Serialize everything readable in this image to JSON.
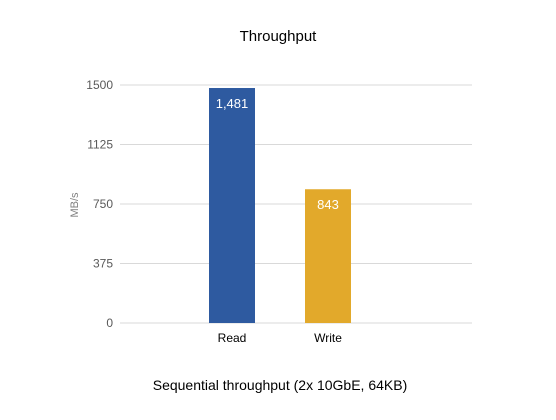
{
  "chart_data": {
    "type": "bar",
    "title": "Throughput",
    "ylabel": "MB/s",
    "xlabel": "",
    "caption": "Sequential throughput (2x 10GbE, 64KB)",
    "categories": [
      "Read",
      "Write"
    ],
    "values": [
      1481,
      843
    ],
    "data_labels": [
      "1,481",
      "843"
    ],
    "colors": [
      "#2e5aa0",
      "#e2a92b"
    ],
    "ylim": [
      0,
      1500
    ],
    "yticks": [
      0,
      375,
      750,
      1125,
      1500
    ],
    "ytick_labels": [
      "0",
      "375",
      "750",
      "1125",
      "1500"
    ],
    "grid": true,
    "legend": "none"
  }
}
